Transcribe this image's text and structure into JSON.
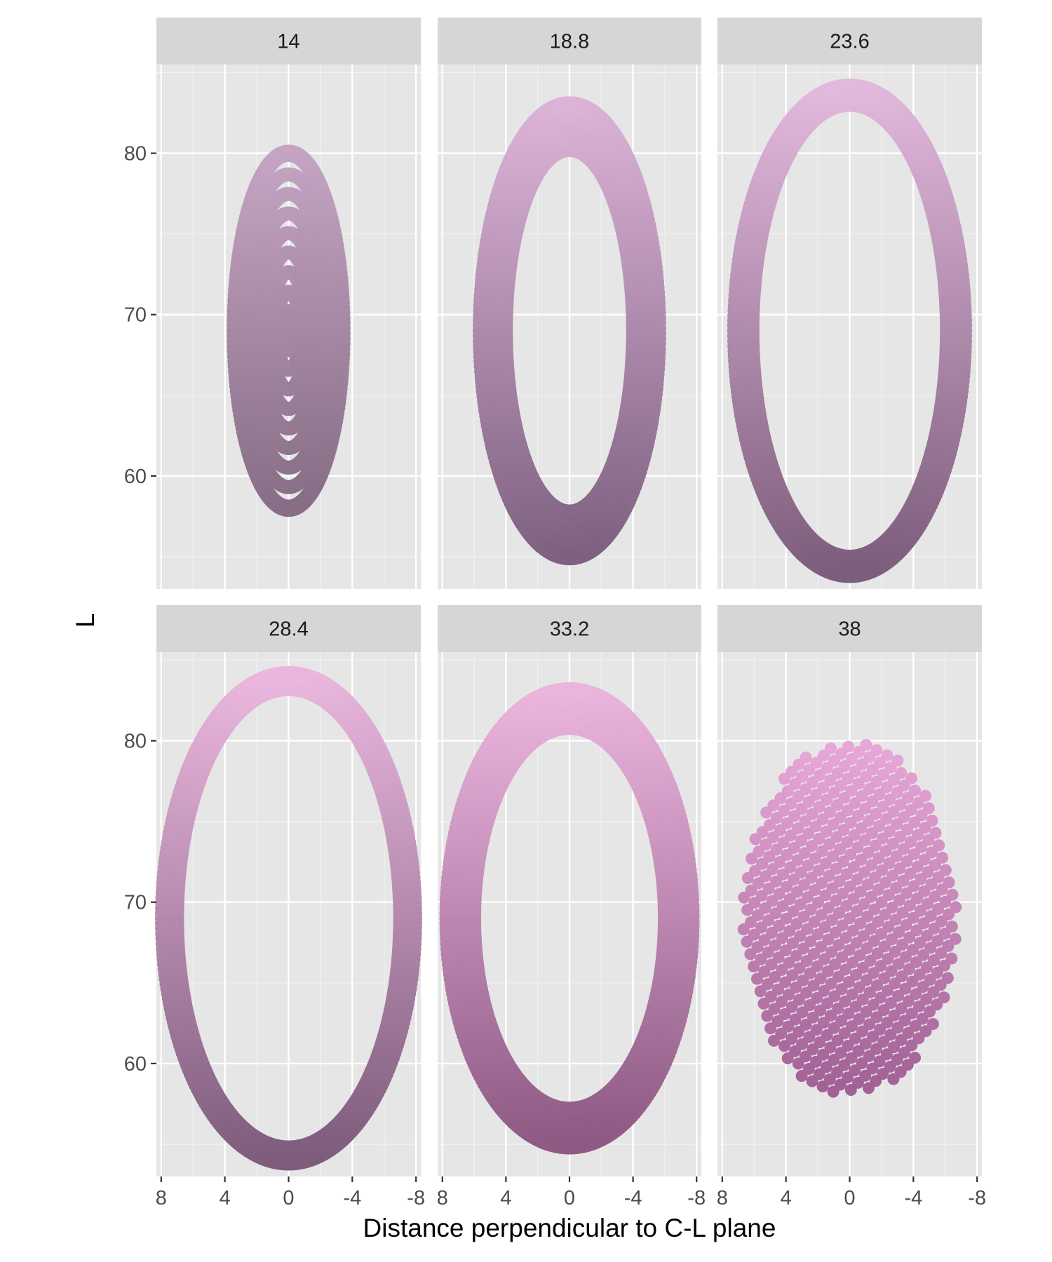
{
  "chart_data": {
    "type": "scatter",
    "xlabel": "Distance perpendicular to C-L plane",
    "ylabel": "L",
    "xlim": [
      8.3,
      -8.3
    ],
    "ylim": [
      53,
      85.5
    ],
    "x_reversed": true,
    "x_ticks": [
      8,
      4,
      0,
      -4,
      -8
    ],
    "y_ticks": [
      60,
      70,
      80
    ],
    "grid": true,
    "panel_background": "#e6e6e6",
    "strip_background": "#d6d6d6",
    "point_color_light": "#e3b2dc",
    "point_color_dark": "#7a5a78",
    "facets": [
      {
        "label": "14",
        "center_x": 0,
        "center_y": 69.0,
        "semi_x": 3.3,
        "semi_y": 10.9,
        "inner_semi_x": 0,
        "inner_semi_y": 0,
        "shape": "filled",
        "color_top": "#c4a4c2",
        "color_bottom": "#876d86"
      },
      {
        "label": "18.8",
        "center_x": 0,
        "center_y": 69.0,
        "semi_x": 5.5,
        "semi_y": 13.9,
        "inner_semi_x": 4.0,
        "inner_semi_y": 11.2,
        "shape": "ring",
        "color_top": "#dcb3d7",
        "color_bottom": "#7e6180"
      },
      {
        "label": "23.6",
        "center_x": 0,
        "center_y": 69.0,
        "semi_x": 7.1,
        "semi_y": 15.0,
        "inner_semi_x": 6.1,
        "inner_semi_y": 14.0,
        "shape": "ring",
        "color_top": "#e2b8dc",
        "color_bottom": "#7d5d7c"
      },
      {
        "label": "28.4",
        "center_x": 0,
        "center_y": 69.0,
        "semi_x": 7.8,
        "semi_y": 15.0,
        "inner_semi_x": 7.0,
        "inner_semi_y": 14.2,
        "shape": "ring",
        "color_top": "#eab6dd",
        "color_bottom": "#7e5c7c"
      },
      {
        "label": "33.2",
        "center_x": 0,
        "center_y": 69.0,
        "semi_x": 7.6,
        "semi_y": 14.0,
        "inner_semi_x": 6.0,
        "inner_semi_y": 11.8,
        "shape": "ring",
        "color_top": "#eab4dd",
        "color_bottom": "#8e5a84"
      },
      {
        "label": "38",
        "center_x": 0,
        "center_y": 69.0,
        "semi_x": 6.7,
        "semi_y": 11.0,
        "inner_semi_x": 0,
        "inner_semi_y": 0,
        "shape": "lattice",
        "color_top": "#e8a8d8",
        "color_bottom": "#a06094"
      }
    ]
  }
}
